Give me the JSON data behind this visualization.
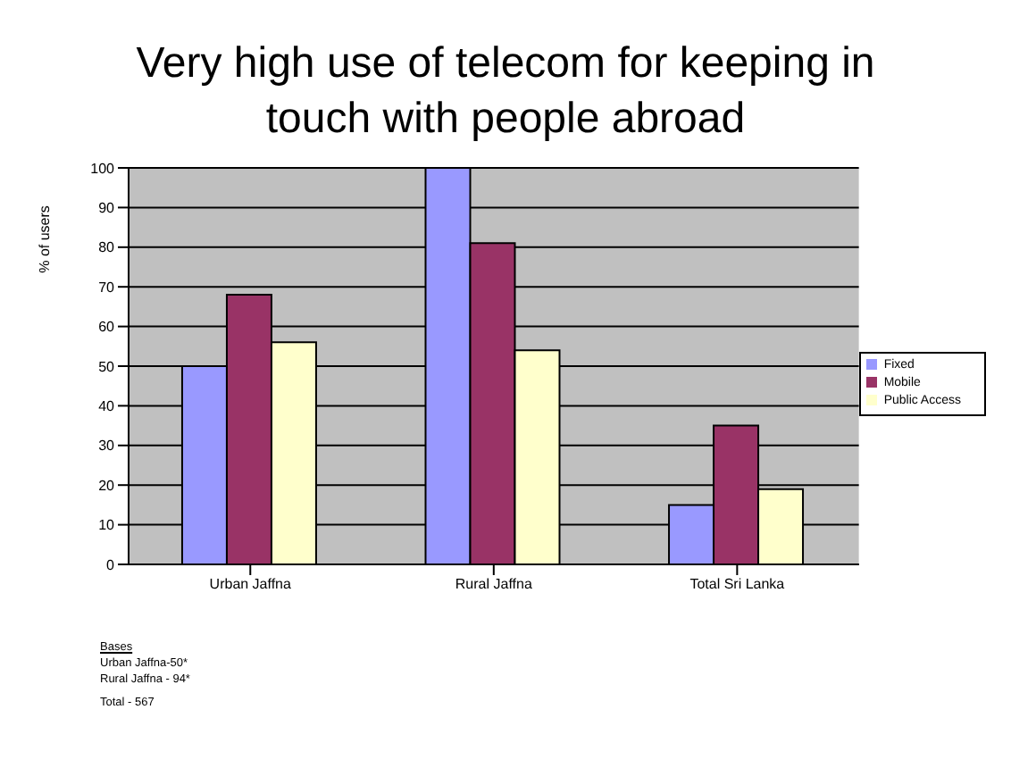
{
  "chart_data": {
    "type": "bar",
    "title": "Very high use of telecom for keeping in touch with people abroad",
    "ylabel": "% of users",
    "categories": [
      "Urban Jaffna",
      "Rural Jaffna",
      "Total Sri Lanka"
    ],
    "series": [
      {
        "name": "Fixed",
        "color": "#9999ff",
        "values": [
          50,
          100,
          15
        ]
      },
      {
        "name": "Mobile",
        "color": "#993366",
        "values": [
          68,
          81,
          35
        ]
      },
      {
        "name": "Public Access",
        "color": "#ffffcc",
        "values": [
          56,
          54,
          19
        ]
      }
    ],
    "ylim": [
      0,
      100
    ],
    "yticks": [
      0,
      10,
      20,
      30,
      40,
      50,
      60,
      70,
      80,
      90,
      100
    ],
    "grid": "y",
    "legend": "right",
    "annotations": [
      "Bases",
      "Urban Jaffna-50*",
      "Rural Jaffna - 94*",
      "Total - 567"
    ]
  }
}
